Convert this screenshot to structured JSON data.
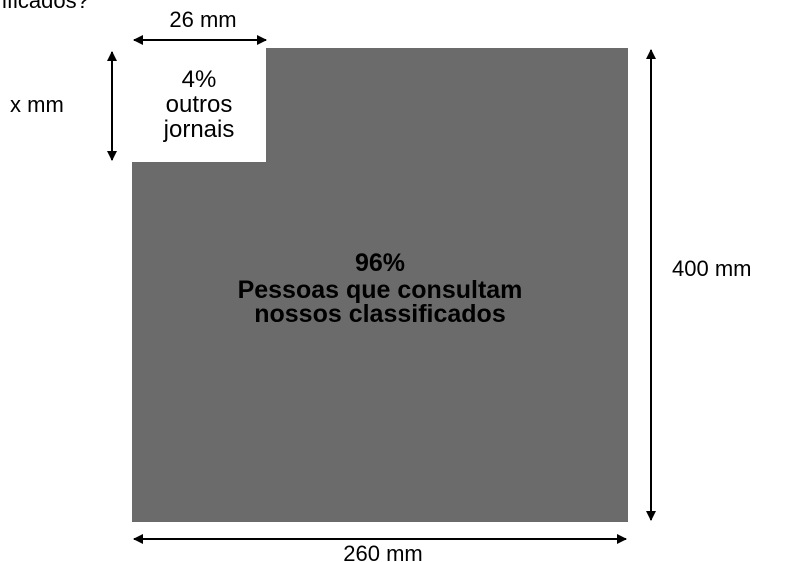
{
  "top_fragment": "ificados?",
  "dimensions": {
    "small_width": "26 mm",
    "small_height": "x mm",
    "total_height": "400 mm",
    "total_width": "260 mm"
  },
  "small_box": {
    "percent": "4%",
    "line1": "outros",
    "line2": "jornais"
  },
  "main_box": {
    "percent": "96%",
    "line1": "Pessoas que consultam",
    "line2": "nossos classificados"
  },
  "colors": {
    "main_fill": "#6b6b6b",
    "small_fill": "#ffffff",
    "arrow": "#000000"
  }
}
